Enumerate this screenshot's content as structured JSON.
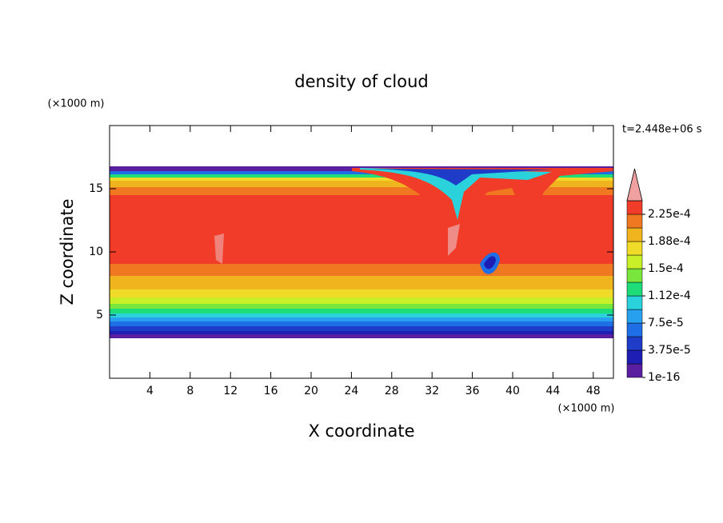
{
  "chart_data": {
    "type": "contour",
    "title": "density of cloud",
    "x_label": "X coordinate",
    "y_label": "Z coordinate",
    "x_unit": "(×1000 m)",
    "y_unit": "(×1000 m)",
    "time_label": "t=2.448e+06 s",
    "xlim": [
      0,
      50
    ],
    "ylim": [
      0,
      20
    ],
    "xticks": [
      4,
      8,
      12,
      16,
      20,
      24,
      28,
      32,
      36,
      40,
      44,
      48
    ],
    "yticks": [
      5,
      10,
      15
    ],
    "colors": [
      "#5a1ea0",
      "#1e1eb4",
      "#1e3cc8",
      "#1e6ee6",
      "#28a0f0",
      "#2ad2dc",
      "#1edc78",
      "#78e63c",
      "#c8f028",
      "#f0dc28",
      "#f0b41e",
      "#f07820",
      "#f03c28"
    ],
    "extend_color": "#f0a0a0",
    "colorbar_ticks": [
      {
        "value": 1e-16,
        "label": "1e-16"
      },
      {
        "value": 3.75e-05,
        "label": "3.75e-5"
      },
      {
        "value": 7.5e-05,
        "label": "7.5e-5"
      },
      {
        "value": 0.000112,
        "label": "1.12e-4"
      },
      {
        "value": 0.00015,
        "label": "1.5e-4"
      },
      {
        "value": 0.000188,
        "label": "1.88e-4"
      },
      {
        "value": 0.000225,
        "label": "2.25e-4"
      }
    ]
  }
}
